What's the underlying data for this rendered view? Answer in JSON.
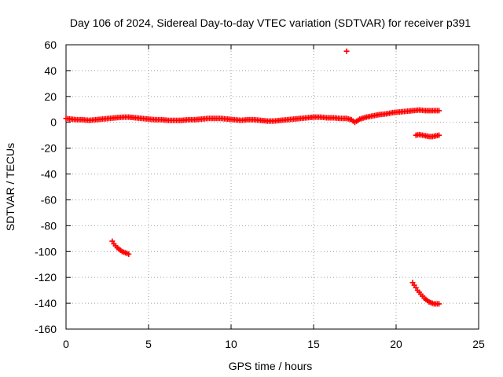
{
  "chart_data": {
    "type": "scatter",
    "title": "Day 106 of 2024, Sidereal Day-to-day VTEC variation (SDTVAR) for receiver p391",
    "xlabel": "GPS time / hours",
    "ylabel": "SDTVAR / TECUs",
    "xlim": [
      0,
      25
    ],
    "ylim": [
      -160,
      60
    ],
    "x_ticks": [
      0,
      5,
      10,
      15,
      20,
      25
    ],
    "x_tick_labels": [
      "0",
      "5",
      "10",
      "15",
      "20",
      "25"
    ],
    "y_ticks": [
      -160,
      -140,
      -120,
      -100,
      -80,
      -60,
      -40,
      -20,
      0,
      20,
      40,
      60
    ],
    "y_tick_labels": [
      "-160",
      "-140",
      "-120",
      "-100",
      "-80",
      "-60",
      "-40",
      "-20",
      "0",
      "20",
      "40",
      "60"
    ],
    "grid": true,
    "marker_color": "#ff0000",
    "marker": "plus",
    "series": [
      {
        "name": "SDTVAR main trace",
        "x": [
          0.0,
          0.3,
          0.6,
          1.0,
          1.4,
          1.8,
          2.2,
          2.6,
          3.0,
          3.5,
          3.8,
          4.2,
          4.6,
          5.0,
          5.4,
          5.8,
          6.2,
          6.6,
          7.0,
          7.4,
          7.8,
          8.2,
          8.6,
          9.0,
          9.4,
          9.8,
          10.2,
          10.6,
          11.0,
          11.4,
          11.8,
          12.2,
          12.6,
          13.0,
          13.4,
          13.8,
          14.2,
          14.6,
          15.0,
          15.4,
          15.8,
          16.2,
          16.6,
          17.0,
          17.3,
          17.5,
          17.8,
          18.2,
          18.6,
          19.0,
          19.4,
          19.8,
          20.2,
          20.6,
          21.0,
          21.4,
          21.8,
          22.2,
          22.6
        ],
        "y": [
          3,
          2.5,
          2,
          2,
          1.5,
          2,
          2.5,
          3,
          3.5,
          4,
          4,
          3.5,
          3,
          2.5,
          2,
          2,
          1.5,
          1.5,
          1.5,
          2,
          2,
          2.5,
          3,
          3,
          3,
          2.5,
          2,
          1.5,
          2,
          2,
          1.5,
          1,
          1,
          1.5,
          2,
          2.5,
          3,
          3.5,
          4,
          4,
          3.5,
          3.5,
          3,
          3,
          2,
          0,
          2.5,
          4,
          5,
          6,
          6.5,
          7.5,
          8,
          8.5,
          9,
          9.5,
          9,
          9,
          9
        ]
      },
      {
        "name": "SDTVAR outlier",
        "x": [
          17.0
        ],
        "y": [
          55
        ]
      },
      {
        "name": "SDTVAR low arc (hours 2.8-3.8)",
        "x": [
          2.8,
          2.9,
          3.0,
          3.1,
          3.2,
          3.3,
          3.4,
          3.5,
          3.6,
          3.7,
          3.8
        ],
        "y": [
          -92,
          -94,
          -95.5,
          -97,
          -98,
          -99,
          -100,
          -100.5,
          -101,
          -101.5,
          -102
        ]
      },
      {
        "name": "SDTVAR segment near -10 (hours 21.2-22.6)",
        "x": [
          21.2,
          21.4,
          21.6,
          21.8,
          22.0,
          22.2,
          22.4,
          22.6
        ],
        "y": [
          -10,
          -9.5,
          -10,
          -10.5,
          -11,
          -11,
          -10.5,
          -10
        ]
      },
      {
        "name": "SDTVAR low arc (hours 21.0-22.6)",
        "x": [
          21.0,
          21.1,
          21.2,
          21.3,
          21.4,
          21.5,
          21.6,
          21.7,
          21.8,
          21.9,
          22.0,
          22.1,
          22.2,
          22.3,
          22.4,
          22.5,
          22.6
        ],
        "y": [
          -124,
          -126,
          -128,
          -130,
          -131.5,
          -133,
          -134.5,
          -136,
          -137,
          -138,
          -139,
          -139.5,
          -140,
          -140.5,
          -140.5,
          -140.5,
          -140.5
        ]
      }
    ]
  }
}
